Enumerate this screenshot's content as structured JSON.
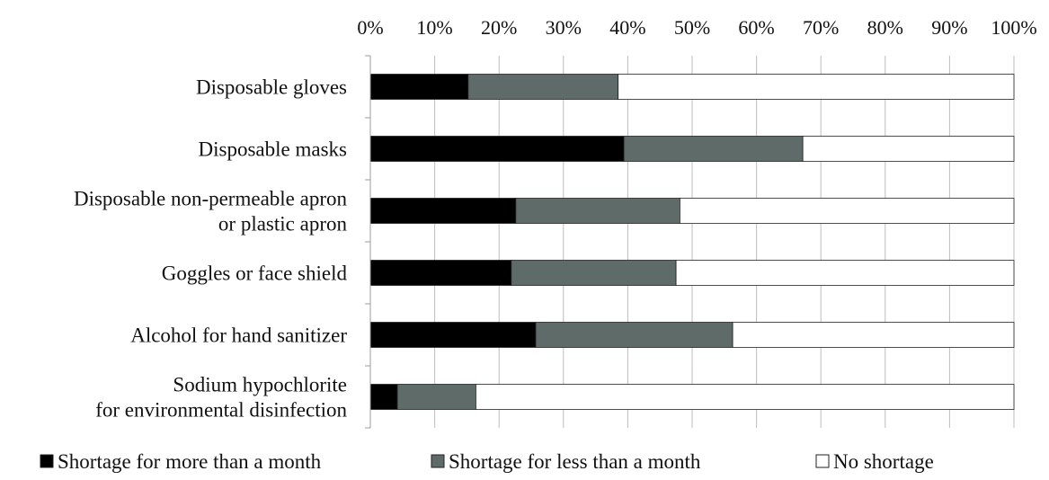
{
  "chart_data": {
    "type": "bar",
    "orientation": "horizontal-stacked-100",
    "x_ticks": [
      "0%",
      "10%",
      "20%",
      "30%",
      "40%",
      "50%",
      "60%",
      "70%",
      "80%",
      "90%",
      "100%"
    ],
    "xlim": [
      0,
      100
    ],
    "x_axis_position": "top",
    "grid": true,
    "legend_placement": "bottom",
    "categories": [
      [
        "Disposable gloves"
      ],
      [
        "Disposable masks"
      ],
      [
        "Disposable non-permeable apron",
        "or plastic apron"
      ],
      [
        "Goggles or face shield"
      ],
      [
        "Alcohol for hand sanitizer"
      ],
      [
        "Sodium hypochlorite",
        "for environmental disinfection"
      ]
    ],
    "series": [
      {
        "name": "Shortage for more than a month",
        "color": "#000000",
        "values": [
          15.2,
          39.4,
          22.6,
          21.9,
          25.7,
          4.2
        ]
      },
      {
        "name": "Shortage for less than a month",
        "color": "#5f6b69",
        "values": [
          23.3,
          27.8,
          25.5,
          25.6,
          30.6,
          12.2
        ]
      },
      {
        "name": "No shortage",
        "color": "#ffffff",
        "values": [
          61.5,
          32.8,
          51.9,
          52.5,
          43.7,
          83.6
        ]
      }
    ]
  }
}
